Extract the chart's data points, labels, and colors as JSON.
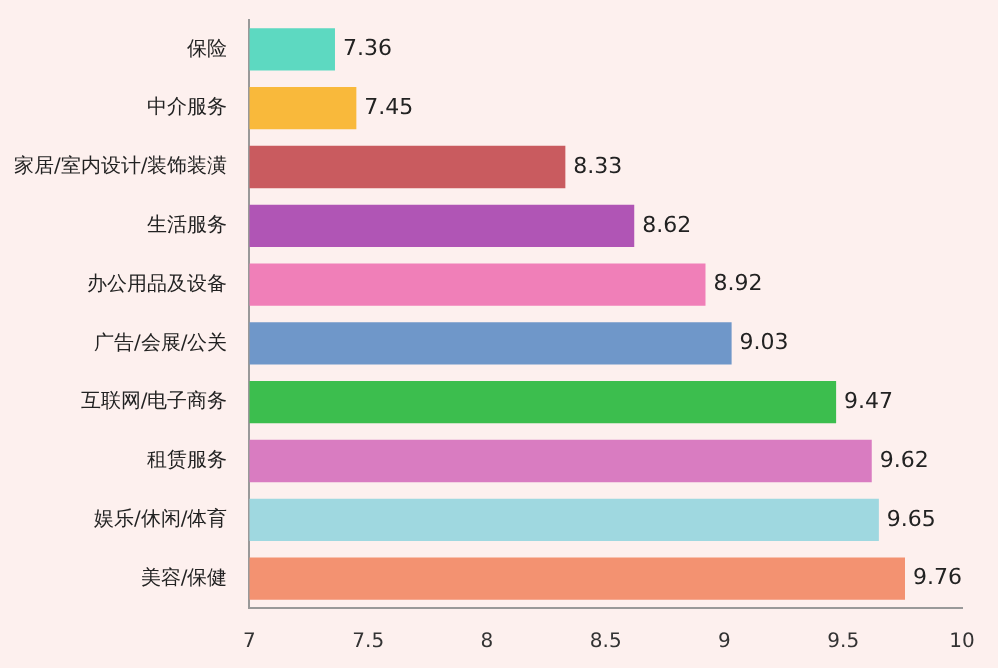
{
  "chart_data": {
    "type": "bar",
    "orientation": "horizontal",
    "categories": [
      "保险",
      "中介服务",
      "家居/室内设计/装饰装潢",
      "生活服务",
      "办公用品及设备",
      "广告/会展/公关",
      "互联网/电子商务",
      "租赁服务",
      "娱乐/休闲/体育",
      "美容/保健"
    ],
    "values": [
      7.36,
      7.45,
      8.33,
      8.62,
      8.92,
      9.03,
      9.47,
      9.62,
      9.65,
      9.76
    ],
    "colors": [
      "#5dd9c1",
      "#f9b93b",
      "#c95b5f",
      "#b055b5",
      "#f07fb8",
      "#6f97c9",
      "#3cbe4e",
      "#d97cc1",
      "#9fd8e0",
      "#f39271"
    ],
    "xlim": [
      7,
      10
    ],
    "xticks": [
      7,
      7.5,
      8,
      8.5,
      9,
      9.5,
      10
    ],
    "data_labels": true,
    "grid": false,
    "legend": false
  }
}
